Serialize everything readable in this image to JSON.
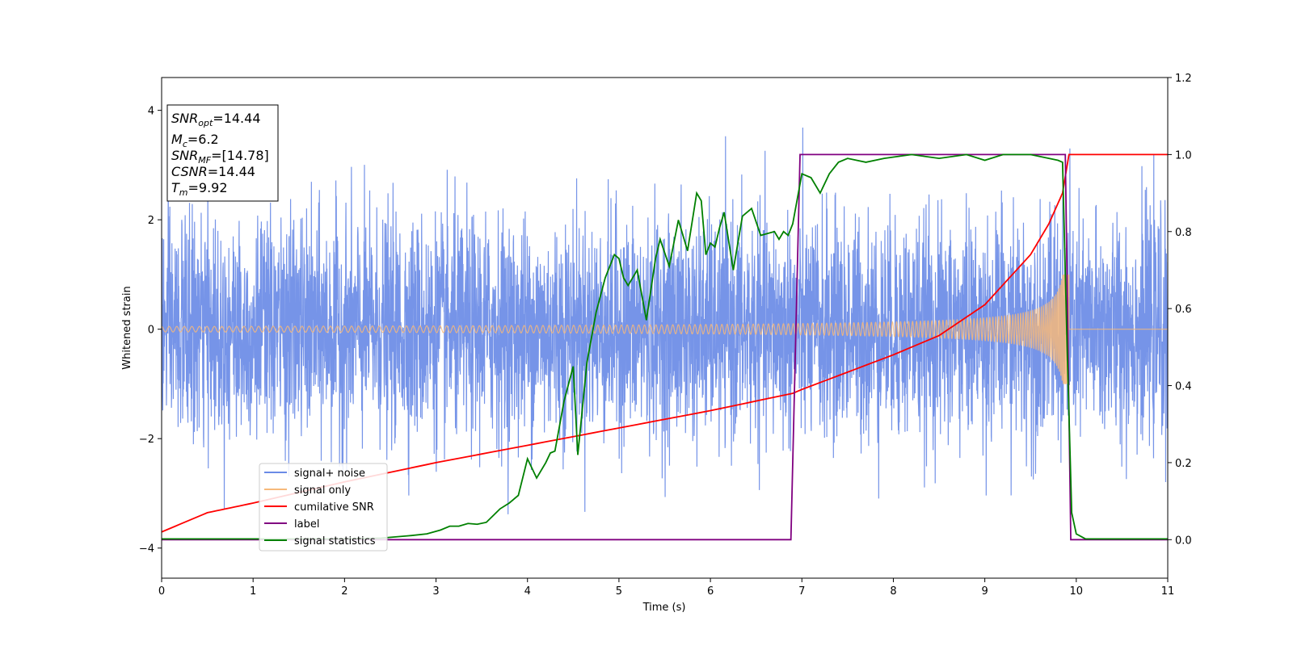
{
  "chart_data": {
    "type": "line",
    "xlabel": "Time (s)",
    "ylabel": "Whitened strain",
    "xlim": [
      0,
      11
    ],
    "ylim": [
      -4.55,
      4.6
    ],
    "y2lim": [
      -0.1,
      1.2
    ],
    "xticks": [
      0,
      1,
      2,
      3,
      4,
      5,
      6,
      7,
      8,
      9,
      10,
      11
    ],
    "yticks": [
      -4,
      -2,
      0,
      2,
      4
    ],
    "y2ticks": [
      "0.0",
      "0.2",
      "0.4",
      "0.6",
      "0.8",
      "1.0",
      "1.2"
    ],
    "grid": false,
    "legend_position": "lower-left",
    "info_box": {
      "position": "top-left",
      "entries": [
        {
          "main": "SNR",
          "sub": "opt",
          "value": "=14.44"
        },
        {
          "main": "M",
          "sub": "c",
          "value": "=6.2"
        },
        {
          "main": "SNR",
          "sub": "MF",
          "value": "=[14.78]"
        },
        {
          "main": "CSNR",
          "sub": "",
          "value": "=14.44"
        },
        {
          "main": "T",
          "sub": "m",
          "value": "=9.92"
        }
      ]
    },
    "series": [
      {
        "name": "signal+ noise",
        "color": "#6a8be6",
        "axis": "left",
        "noise_sigma": 1.0,
        "samples_per_second": 400
      },
      {
        "name": "signal only",
        "color": "#f7b97a",
        "axis": "left",
        "merger_time": 9.92,
        "amplitude_start": 0.05,
        "amplitude_peak": 1.0
      },
      {
        "name": "cumilative SNR",
        "color": "#ff0000",
        "axis": "right",
        "x": [
          0,
          0.5,
          1,
          2,
          3,
          4,
          5,
          6,
          6.9,
          7,
          8,
          8.5,
          9,
          9.5,
          9.7,
          9.85,
          9.92,
          11
        ],
        "y": [
          0.02,
          0.07,
          0.095,
          0.15,
          0.2,
          0.245,
          0.29,
          0.335,
          0.38,
          0.39,
          0.48,
          0.53,
          0.61,
          0.74,
          0.82,
          0.9,
          1.0,
          1.0
        ]
      },
      {
        "name": "label",
        "color": "#800080",
        "axis": "right",
        "x": [
          0,
          6.88,
          6.98,
          9.88,
          9.94,
          11
        ],
        "y": [
          0,
          0,
          1,
          1,
          0,
          0
        ]
      },
      {
        "name": "signal statistics",
        "color": "#008000",
        "axis": "right",
        "x": [
          0,
          0.5,
          1,
          1.5,
          2,
          2.4,
          2.7,
          2.9,
          3.05,
          3.15,
          3.25,
          3.35,
          3.45,
          3.55,
          3.7,
          3.8,
          3.9,
          4.0,
          4.1,
          4.2,
          4.25,
          4.3,
          4.4,
          4.5,
          4.55,
          4.65,
          4.75,
          4.85,
          4.95,
          5.0,
          5.05,
          5.1,
          5.2,
          5.3,
          5.4,
          5.45,
          5.55,
          5.65,
          5.75,
          5.85,
          5.9,
          5.95,
          6.0,
          6.05,
          6.1,
          6.15,
          6.25,
          6.35,
          6.45,
          6.55,
          6.7,
          6.75,
          6.8,
          6.85,
          6.9,
          7.0,
          7.1,
          7.2,
          7.3,
          7.4,
          7.5,
          7.7,
          7.9,
          8.2,
          8.5,
          8.8,
          9.0,
          9.2,
          9.5,
          9.8,
          9.85,
          9.9,
          9.95,
          10.0,
          10.1,
          11
        ],
        "y": [
          0.002,
          0.002,
          0.002,
          0.002,
          0.002,
          0.004,
          0.01,
          0.015,
          0.025,
          0.035,
          0.035,
          0.042,
          0.04,
          0.045,
          0.08,
          0.095,
          0.115,
          0.21,
          0.16,
          0.2,
          0.225,
          0.23,
          0.36,
          0.45,
          0.22,
          0.46,
          0.59,
          0.68,
          0.74,
          0.73,
          0.68,
          0.66,
          0.7,
          0.57,
          0.73,
          0.78,
          0.71,
          0.83,
          0.75,
          0.9,
          0.88,
          0.74,
          0.77,
          0.76,
          0.81,
          0.85,
          0.7,
          0.84,
          0.86,
          0.79,
          0.8,
          0.78,
          0.8,
          0.79,
          0.82,
          0.95,
          0.94,
          0.9,
          0.95,
          0.98,
          0.99,
          0.98,
          0.99,
          1.0,
          0.99,
          1.0,
          0.985,
          1.0,
          1.0,
          0.985,
          0.98,
          0.5,
          0.07,
          0.015,
          0.002,
          0.002
        ]
      }
    ]
  }
}
